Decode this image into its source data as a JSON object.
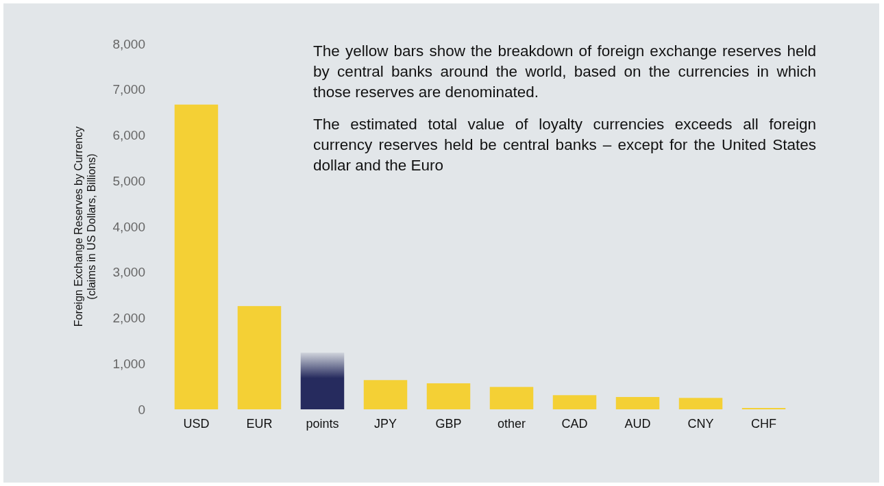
{
  "chart_data": {
    "type": "bar",
    "ylabel": "Foreign Exchange Reserves by Currency\n(claims in US Dollars, Billions)",
    "categories": [
      "USD",
      "EUR",
      "points",
      "JPY",
      "GBP",
      "other",
      "CAD",
      "AUD",
      "CNY",
      "CHF"
    ],
    "values": [
      6670,
      2260,
      1240,
      640,
      570,
      490,
      310,
      270,
      250,
      30
    ],
    "colors": [
      "#f4d035",
      "#f4d035",
      "#262b5e",
      "#f4d035",
      "#f4d035",
      "#f4d035",
      "#f4d035",
      "#f4d035",
      "#f4d035",
      "#f4d035"
    ],
    "ylim": [
      0,
      8000
    ],
    "yticks": [
      {
        "value": 0,
        "label": "0"
      },
      {
        "value": 1000,
        "label": "1,000"
      },
      {
        "value": 2000,
        "label": "2,000"
      },
      {
        "value": 3000,
        "label": "3,000"
      },
      {
        "value": 4000,
        "label": "4,000"
      },
      {
        "value": 5000,
        "label": "5,000"
      },
      {
        "value": 6000,
        "label": "6,000"
      },
      {
        "value": 7000,
        "label": "7,000"
      },
      {
        "value": 8000,
        "label": "8,000"
      }
    ],
    "grid": false,
    "annotations": [
      "The yellow bars show the breakdown of foreign exchange reserves held by central banks around the world, based on the currencies in which those reserves are denominated.",
      "The estimated total value of loyalty currencies exceeds all foreign currency reserves held be central banks – except for the United States dollar and the Euro"
    ]
  }
}
